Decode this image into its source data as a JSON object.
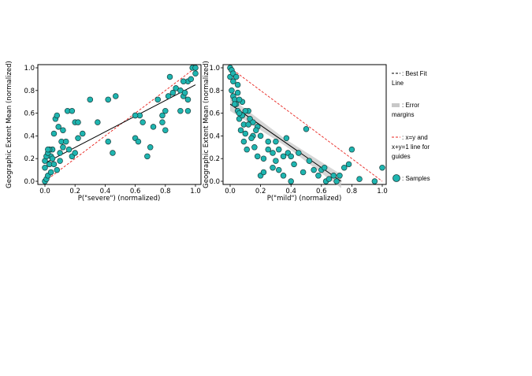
{
  "chart_data": [
    {
      "type": "scatter",
      "xlabel": "P(\"severe\") (normalized)",
      "ylabel": "Geographic Extent Mean (normalized)",
      "xlim": [
        0,
        1
      ],
      "ylim": [
        0,
        1
      ],
      "xticks": [
        "0.0",
        "0.2",
        "0.4",
        "0.6",
        "0.8",
        "1.0"
      ],
      "yticks": [
        "0.0",
        "0.2",
        "0.4",
        "0.6",
        "0.8",
        "1.0"
      ],
      "grid": false,
      "guide_line": {
        "kind": "x=y",
        "from": [
          0,
          0
        ],
        "to": [
          1,
          1
        ]
      },
      "best_fit": {
        "from": [
          0,
          0.16
        ],
        "to": [
          1,
          0.85
        ]
      },
      "series": [
        {
          "x": [
            0.0,
            0.01,
            0.0,
            0.02,
            0.03,
            0.04,
            0.05,
            0.06,
            0.07,
            0.08,
            0.09,
            0.1,
            0.11,
            0.12,
            0.15,
            0.18,
            0.2,
            0.22,
            0.0,
            0.01,
            0.02,
            0.03,
            0.05,
            0.06,
            0.08,
            0.1,
            0.12,
            0.14,
            0.16,
            0.18,
            0.2,
            0.22,
            0.25,
            0.3,
            0.35,
            0.42,
            0.45,
            0.47,
            0.42,
            0.6,
            0.6,
            0.62,
            0.63,
            0.65,
            0.68,
            0.7,
            0.72,
            0.75,
            0.78,
            0.78,
            0.8,
            0.82,
            0.83,
            0.85,
            0.87,
            0.9,
            0.9,
            0.92,
            0.93,
            0.95,
            0.95,
            0.97,
            0.98,
            1.0,
            1.0,
            0.95,
            0.92,
            0.8,
            0.6,
            0.02,
            0.04
          ],
          "y": [
            0.0,
            0.02,
            0.12,
            0.05,
            0.15,
            0.22,
            0.28,
            0.42,
            0.55,
            0.58,
            0.48,
            0.25,
            0.35,
            0.45,
            0.62,
            0.62,
            0.52,
            0.52,
            0.18,
            0.22,
            0.25,
            0.28,
            0.2,
            0.15,
            0.1,
            0.18,
            0.3,
            0.35,
            0.28,
            0.22,
            0.25,
            0.38,
            0.42,
            0.72,
            0.52,
            0.35,
            0.25,
            0.75,
            0.72,
            0.58,
            0.38,
            0.35,
            0.58,
            0.52,
            0.22,
            0.3,
            0.48,
            0.72,
            0.52,
            0.58,
            0.62,
            0.75,
            0.92,
            0.78,
            0.82,
            0.62,
            0.8,
            0.75,
            0.78,
            0.62,
            0.88,
            0.9,
            1.0,
            1.0,
            0.95,
            0.72,
            0.88,
            0.45,
            0.58,
            0.28,
            0.08
          ]
        }
      ]
    },
    {
      "type": "scatter",
      "xlabel": "P(\"mild\") (normalized)",
      "ylabel": "Geographic Extent Mean (normalized)",
      "xlim": [
        0,
        1
      ],
      "ylim": [
        0,
        1
      ],
      "xticks": [
        "0.0",
        "0.2",
        "0.4",
        "0.6",
        "0.8",
        "1.0"
      ],
      "yticks": [
        "0.0",
        "0.2",
        "0.4",
        "0.6",
        "0.8",
        "1.0"
      ],
      "grid": false,
      "guide_line": {
        "kind": "x+y=1",
        "from": [
          0,
          1
        ],
        "to": [
          1,
          0
        ]
      },
      "best_fit": {
        "from": [
          0,
          0.68
        ],
        "to": [
          0.73,
          0
        ]
      },
      "series": [
        {
          "x": [
            0.0,
            0.0,
            0.01,
            0.02,
            0.02,
            0.03,
            0.04,
            0.05,
            0.05,
            0.06,
            0.07,
            0.08,
            0.09,
            0.1,
            0.12,
            0.13,
            0.15,
            0.16,
            0.18,
            0.18,
            0.2,
            0.2,
            0.22,
            0.22,
            0.25,
            0.25,
            0.28,
            0.28,
            0.3,
            0.3,
            0.32,
            0.32,
            0.35,
            0.35,
            0.37,
            0.38,
            0.4,
            0.4,
            0.42,
            0.45,
            0.48,
            0.5,
            0.52,
            0.55,
            0.58,
            0.6,
            0.62,
            0.63,
            0.65,
            0.68,
            0.7,
            0.72,
            0.75,
            0.78,
            0.8,
            0.85,
            0.95,
            1.0,
            0.02,
            0.05,
            0.08,
            0.1,
            0.12,
            0.15,
            0.01,
            0.03,
            0.06,
            0.09,
            0.11,
            0.14,
            0.17,
            0.06,
            0.04
          ],
          "y": [
            1.0,
            0.92,
            0.98,
            0.88,
            0.75,
            0.72,
            0.68,
            0.85,
            0.62,
            0.55,
            0.45,
            0.58,
            0.5,
            0.42,
            0.62,
            0.55,
            0.52,
            0.3,
            0.22,
            0.48,
            0.4,
            0.05,
            0.2,
            0.08,
            0.35,
            0.28,
            0.25,
            0.12,
            0.35,
            0.18,
            0.28,
            0.1,
            0.22,
            0.05,
            0.38,
            0.25,
            0.22,
            0.0,
            0.15,
            0.25,
            0.08,
            0.46,
            0.18,
            0.1,
            0.05,
            0.1,
            0.12,
            0.0,
            0.02,
            0.05,
            0.0,
            0.05,
            0.12,
            0.15,
            0.28,
            0.02,
            0.0,
            0.12,
            0.95,
            0.78,
            0.7,
            0.62,
            0.5,
            0.4,
            0.8,
            0.68,
            0.6,
            0.35,
            0.28,
            0.38,
            0.45,
            0.72,
            0.92
          ]
        }
      ]
    }
  ],
  "legend": {
    "best_fit_label": ": Best Fit Line",
    "error_label": ": Error margins",
    "guide_label": ": x=y and x+y=1 line for guides",
    "samples_label": ": Samples"
  },
  "colors": {
    "marker_fill": "#1eb5b0",
    "marker_edge": "#1a3d3c",
    "fit_line": "#000000",
    "guide_line": "#e8211c",
    "error_band": "#c8c8c8"
  }
}
